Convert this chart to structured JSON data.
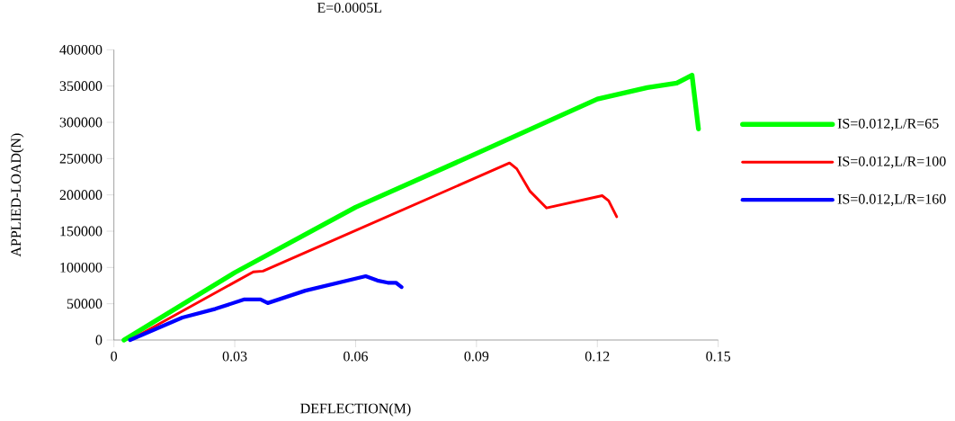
{
  "chart_data": {
    "type": "line",
    "title": "E=0.0005L",
    "xlabel": "DEFLECTION(M)",
    "ylabel": "APPLIED-LOAD(N)",
    "xlim": [
      0,
      0.15
    ],
    "xticks": [
      0,
      0.03,
      0.06,
      0.09,
      0.12,
      0.15
    ],
    "ylim": [
      0,
      400000
    ],
    "yticks": [
      0,
      50000,
      100000,
      150000,
      200000,
      250000,
      300000,
      350000,
      400000
    ],
    "grid": false,
    "legend": "right",
    "marker": "none",
    "line_style": "solid",
    "series": [
      {
        "name": "IS=0.012,L/R=65",
        "color": "#00ff00",
        "x": [
          0.0025,
          0.03,
          0.06,
          0.09,
          0.12,
          0.1324,
          0.1397,
          0.1435,
          0.1451
        ],
        "values": [
          0,
          93000,
          183000,
          257000,
          332000,
          348000,
          354000,
          365000,
          291000
        ]
      },
      {
        "name": "IS=0.012,L/R=100",
        "color": "#ff0000",
        "x": [
          0.004,
          0.0346,
          0.037,
          0.0982,
          0.1,
          0.1033,
          0.1074,
          0.1212,
          0.1228,
          0.1248
        ],
        "values": [
          0,
          94000,
          95000,
          244000,
          236000,
          205000,
          182000,
          199000,
          192000,
          170000
        ]
      },
      {
        "name": "IS=0.012,L/R=160",
        "color": "#0000ff",
        "x": [
          0.004,
          0.017,
          0.0252,
          0.0324,
          0.0364,
          0.0382,
          0.0475,
          0.0625,
          0.0654,
          0.068,
          0.07,
          0.0714
        ],
        "values": [
          0,
          31000,
          43000,
          56000,
          56000,
          51000,
          68000,
          88000,
          82000,
          79000,
          79000,
          73000
        ]
      }
    ]
  }
}
